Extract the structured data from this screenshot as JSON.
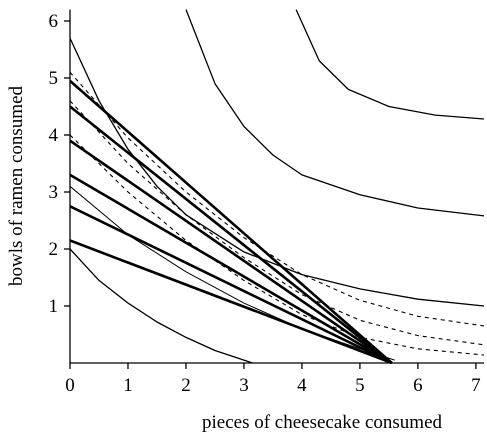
{
  "chart_data": {
    "type": "line",
    "xlabel": "pieces of cheesecake consumed",
    "ylabel": "bowls of ramen consumed",
    "xlim": [
      0,
      7.14
    ],
    "ylim": [
      0,
      6.2
    ],
    "xticks": [
      0,
      1,
      2,
      3,
      4,
      5,
      6,
      7
    ],
    "yticks": [
      1,
      2,
      3,
      4,
      5,
      6
    ],
    "series": [
      {
        "color": "#000000",
        "style": "solid",
        "width": 1.3,
        "x": [
          0,
          0.5,
          1,
          1.5,
          2,
          2.5,
          3.15
        ],
        "values": [
          2.0,
          1.45,
          1.05,
          0.72,
          0.45,
          0.22,
          0
        ]
      },
      {
        "color": "#000000",
        "style": "solid",
        "width": 1.3,
        "x": [
          0,
          0.5,
          1,
          1.5,
          2,
          3,
          4,
          5,
          6,
          7.14
        ],
        "values": [
          5.7,
          4.6,
          3.75,
          3.1,
          2.6,
          1.95,
          1.55,
          1.3,
          1.12,
          1.0
        ]
      },
      {
        "color": "#000000",
        "style": "solid",
        "width": 1.3,
        "x": [
          2.0,
          2.5,
          3,
          3.5,
          4,
          5,
          6,
          7.14
        ],
        "values": [
          6.2,
          4.9,
          4.15,
          3.65,
          3.3,
          2.95,
          2.72,
          2.58
        ]
      },
      {
        "color": "#000000",
        "style": "solid",
        "width": 1.3,
        "x": [
          3.9,
          4.3,
          4.8,
          5.5,
          6.3,
          7.14
        ],
        "values": [
          6.2,
          5.3,
          4.8,
          4.5,
          4.35,
          4.28
        ]
      },
      {
        "color": "#000000",
        "style": "solid",
        "width": 1.0,
        "x": [
          0,
          1,
          2,
          3,
          4,
          5,
          5.6
        ],
        "values": [
          3.1,
          2.25,
          1.6,
          1.05,
          0.6,
          0.25,
          0.05
        ]
      },
      {
        "color": "#000000",
        "style": "dashed",
        "width": 1.1,
        "x": [
          0,
          1,
          2,
          3,
          4,
          5,
          6,
          7.14
        ],
        "values": [
          5.1,
          3.95,
          3.0,
          2.2,
          1.55,
          1.1,
          0.82,
          0.65
        ]
      },
      {
        "color": "#000000",
        "style": "dashed",
        "width": 1.1,
        "x": [
          0,
          1,
          2,
          3,
          4,
          5,
          6,
          7.14
        ],
        "values": [
          4.6,
          3.5,
          2.6,
          1.85,
          1.2,
          0.75,
          0.48,
          0.32
        ]
      },
      {
        "color": "#000000",
        "style": "dashed",
        "width": 1.1,
        "x": [
          0,
          1,
          2,
          3,
          4,
          5,
          6,
          7.14
        ],
        "values": [
          4.0,
          3.0,
          2.15,
          1.45,
          0.85,
          0.45,
          0.25,
          0.14
        ]
      },
      {
        "color": "#000000",
        "style": "solid",
        "width": 2.6,
        "x": [
          0,
          5.55
        ],
        "values": [
          2.15,
          0
        ]
      },
      {
        "color": "#000000",
        "style": "solid",
        "width": 2.6,
        "x": [
          0,
          5.55
        ],
        "values": [
          2.75,
          0
        ]
      },
      {
        "color": "#000000",
        "style": "solid",
        "width": 2.6,
        "x": [
          0,
          5.55
        ],
        "values": [
          3.3,
          0
        ]
      },
      {
        "color": "#000000",
        "style": "solid",
        "width": 2.6,
        "x": [
          0,
          5.55
        ],
        "values": [
          3.9,
          0
        ]
      },
      {
        "color": "#000000",
        "style": "solid",
        "width": 2.6,
        "x": [
          0,
          5.55
        ],
        "values": [
          4.5,
          0
        ]
      },
      {
        "color": "#000000",
        "style": "solid",
        "width": 2.6,
        "x": [
          0,
          5.55
        ],
        "values": [
          4.95,
          0
        ]
      }
    ]
  }
}
